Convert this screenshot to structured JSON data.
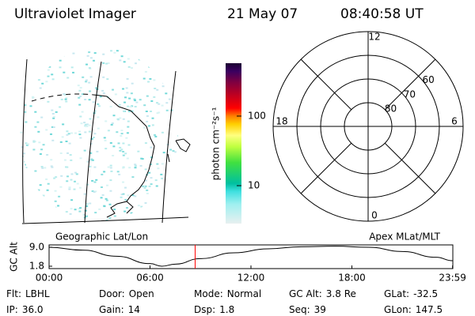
{
  "header": {
    "title": "Ultraviolet Imager",
    "date": "21 May 07",
    "time": "08:40:58 UT"
  },
  "map": {
    "caption": "Geographic Lat/Lon"
  },
  "colorbar": {
    "label": "photon cm⁻²s⁻¹",
    "log": true,
    "lim": [
      2.85,
      576
    ],
    "ticks": [
      10,
      100
    ]
  },
  "polar": {
    "caption": "Apex MLat/MLT",
    "rlim": [
      90,
      50
    ],
    "lat_rings": [
      60,
      70,
      80
    ],
    "mlt_ticks": [
      12,
      18,
      6,
      0
    ]
  },
  "altitude": {
    "ylabel": "GC Alt",
    "ylim": [
      0.9,
      9.9
    ],
    "yticks": [
      {
        "value": 9,
        "label": "9.0"
      },
      {
        "value": 1.8,
        "label": "1.8"
      }
    ],
    "xlim": [
      0,
      24
    ],
    "xticks": [
      {
        "value": 0,
        "label": "00:00"
      },
      {
        "value": 6,
        "label": "06:00"
      },
      {
        "value": 12,
        "label": "12:00"
      },
      {
        "value": 18,
        "label": "18:00"
      },
      {
        "value": 23.983,
        "label": "23:59"
      }
    ],
    "x": [
      0,
      2,
      4,
      6,
      6.7,
      7.5,
      9,
      11,
      13,
      15,
      17,
      19,
      21,
      23,
      23.983
    ],
    "values": [
      9.0,
      7.9,
      5.6,
      2.8,
      1.8,
      2.6,
      4.7,
      6.9,
      8.4,
      9.2,
      9.4,
      9.0,
      7.4,
      5.2,
      3.9
    ],
    "marker": 8.683,
    "marker_color": "#ff0000"
  },
  "footer": [
    [
      {
        "label": "Flt:",
        "value": "LBHL"
      },
      {
        "label": "Door:",
        "value": "Open"
      },
      {
        "label": "Mode:",
        "value": "Normal"
      },
      {
        "label": "GC Alt:",
        "value": "3.8 Re"
      },
      {
        "label": "GLat:",
        "value": "-32.5"
      }
    ],
    [
      {
        "label": "IP:",
        "value": "36.0"
      },
      {
        "label": "Gain:",
        "value": "14"
      },
      {
        "label": "Dsp:",
        "value": "1.8"
      },
      {
        "label": "Seq:",
        "value": "39"
      },
      {
        "label": "GLon:",
        "value": "147.5"
      }
    ]
  ]
}
